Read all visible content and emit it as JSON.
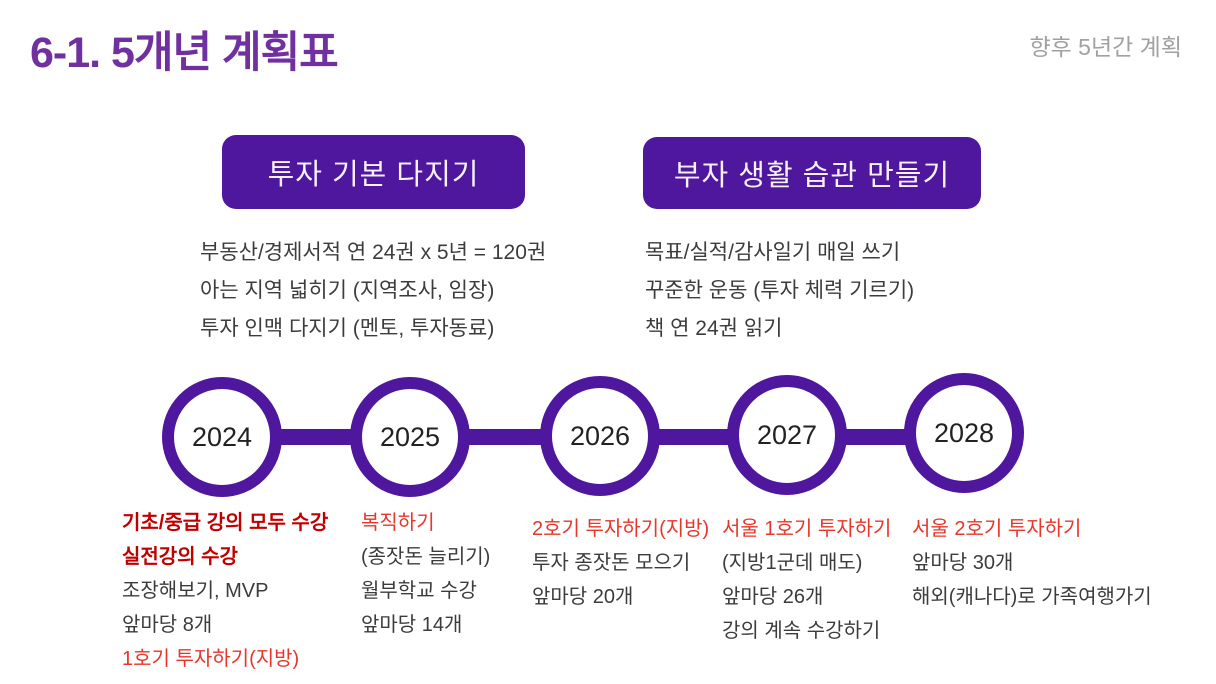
{
  "slide": {
    "title": "6-1. 5개년 계획표",
    "subtitle": "향후 5년간 계획"
  },
  "colors": {
    "deep_purple": "#4F169E",
    "title_purple": "#7030A0",
    "subtitle_gray": "#A1A1A1",
    "bold_dark_red": "#C00000",
    "red": "#E8362A",
    "body_text": "#3C3C3C"
  },
  "sections": [
    {
      "heading": "투자 기본 다지기",
      "items": [
        "부동산/경제서적 연 24권 x 5년 = 120권",
        "아는 지역 넓히기 (지역조사, 임장)",
        "투자 인맥 다지기 (멘토, 투자동료)"
      ]
    },
    {
      "heading": "부자 생활 습관 만들기",
      "items": [
        "목표/실적/감사일기 매일 쓰기",
        "꾸준한 운동 (투자 체력 기르기)",
        "책 연 24권 읽기"
      ]
    }
  ],
  "timeline": [
    {
      "year": "2024",
      "items": [
        {
          "text": "기초/중급 강의 모두 수강",
          "style": "bold-dark-red"
        },
        {
          "text": "실전강의 수강",
          "style": "bold-dark-red"
        },
        {
          "text": "조장해보기, MVP",
          "style": "normal"
        },
        {
          "text": "앞마당 8개",
          "style": "normal"
        },
        {
          "text": "1호기 투자하기(지방)",
          "style": "red"
        }
      ]
    },
    {
      "year": "2025",
      "items": [
        {
          "text": "복직하기",
          "style": "red"
        },
        {
          "text": "(종잣돈 늘리기)",
          "style": "normal"
        },
        {
          "text": "월부학교 수강",
          "style": "normal"
        },
        {
          "text": "앞마당 14개",
          "style": "normal"
        }
      ]
    },
    {
      "year": "2026",
      "items": [
        {
          "text": "2호기 투자하기(지방)",
          "style": "red"
        },
        {
          "text": "투자 종잣돈 모으기",
          "style": "normal"
        },
        {
          "text": "앞마당 20개",
          "style": "normal"
        }
      ]
    },
    {
      "year": "2027",
      "items": [
        {
          "text": "서울 1호기 투자하기",
          "style": "red"
        },
        {
          "text": "(지방1군데 매도)",
          "style": "normal"
        },
        {
          "text": "앞마당 26개",
          "style": "normal"
        },
        {
          "text": "강의 계속 수강하기",
          "style": "normal"
        }
      ]
    },
    {
      "year": "2028",
      "items": [
        {
          "text": "서울 2호기 투자하기",
          "style": "red"
        },
        {
          "text": "앞마당 30개",
          "style": "normal"
        },
        {
          "text": "해외(캐나다)로 가족여행가기",
          "style": "normal"
        }
      ]
    }
  ]
}
